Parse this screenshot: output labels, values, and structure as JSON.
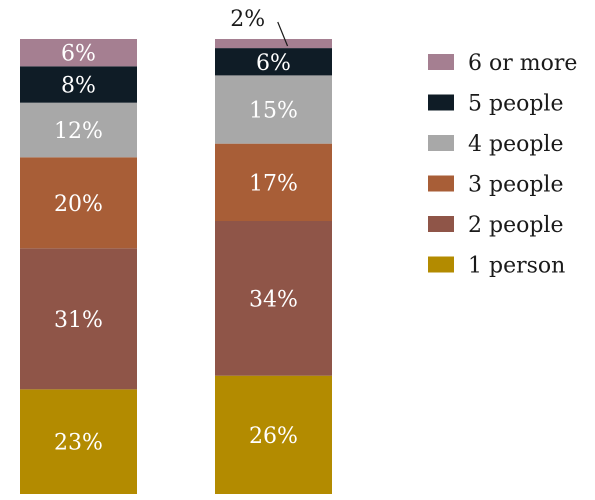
{
  "chart_data": {
    "type": "bar",
    "stacked": true,
    "categories": [
      "",
      ""
    ],
    "series": [
      {
        "name": "1 person",
        "values": [
          23,
          26
        ],
        "color": "#b38b00",
        "labels": [
          "23%",
          "26%"
        ]
      },
      {
        "name": "2 people",
        "values": [
          31,
          34
        ],
        "color": "#8f5548",
        "labels": [
          "31%",
          "34%"
        ]
      },
      {
        "name": "3 people",
        "values": [
          20,
          17
        ],
        "color": "#a85e37",
        "labels": [
          "20%",
          "17%"
        ]
      },
      {
        "name": "4 people",
        "values": [
          12,
          15
        ],
        "color": "#a8a8a8",
        "labels": [
          "12%",
          "15%"
        ]
      },
      {
        "name": "5 people",
        "values": [
          8,
          6
        ],
        "color": "#0f1c26",
        "labels": [
          "8%",
          "6%"
        ]
      },
      {
        "name": "6 or more",
        "values": [
          6,
          2
        ],
        "color": "#a57f91",
        "labels": [
          "6%",
          "2%"
        ]
      }
    ],
    "ylim": [
      0,
      100
    ],
    "grid": false,
    "legend_position": "right",
    "legend_order": [
      "6 or more",
      "5 people",
      "4 people",
      "3 people",
      "2 people",
      "1 person"
    ],
    "callouts": [
      {
        "series": "6 or more",
        "category_index": 1,
        "text": "2%"
      }
    ]
  }
}
